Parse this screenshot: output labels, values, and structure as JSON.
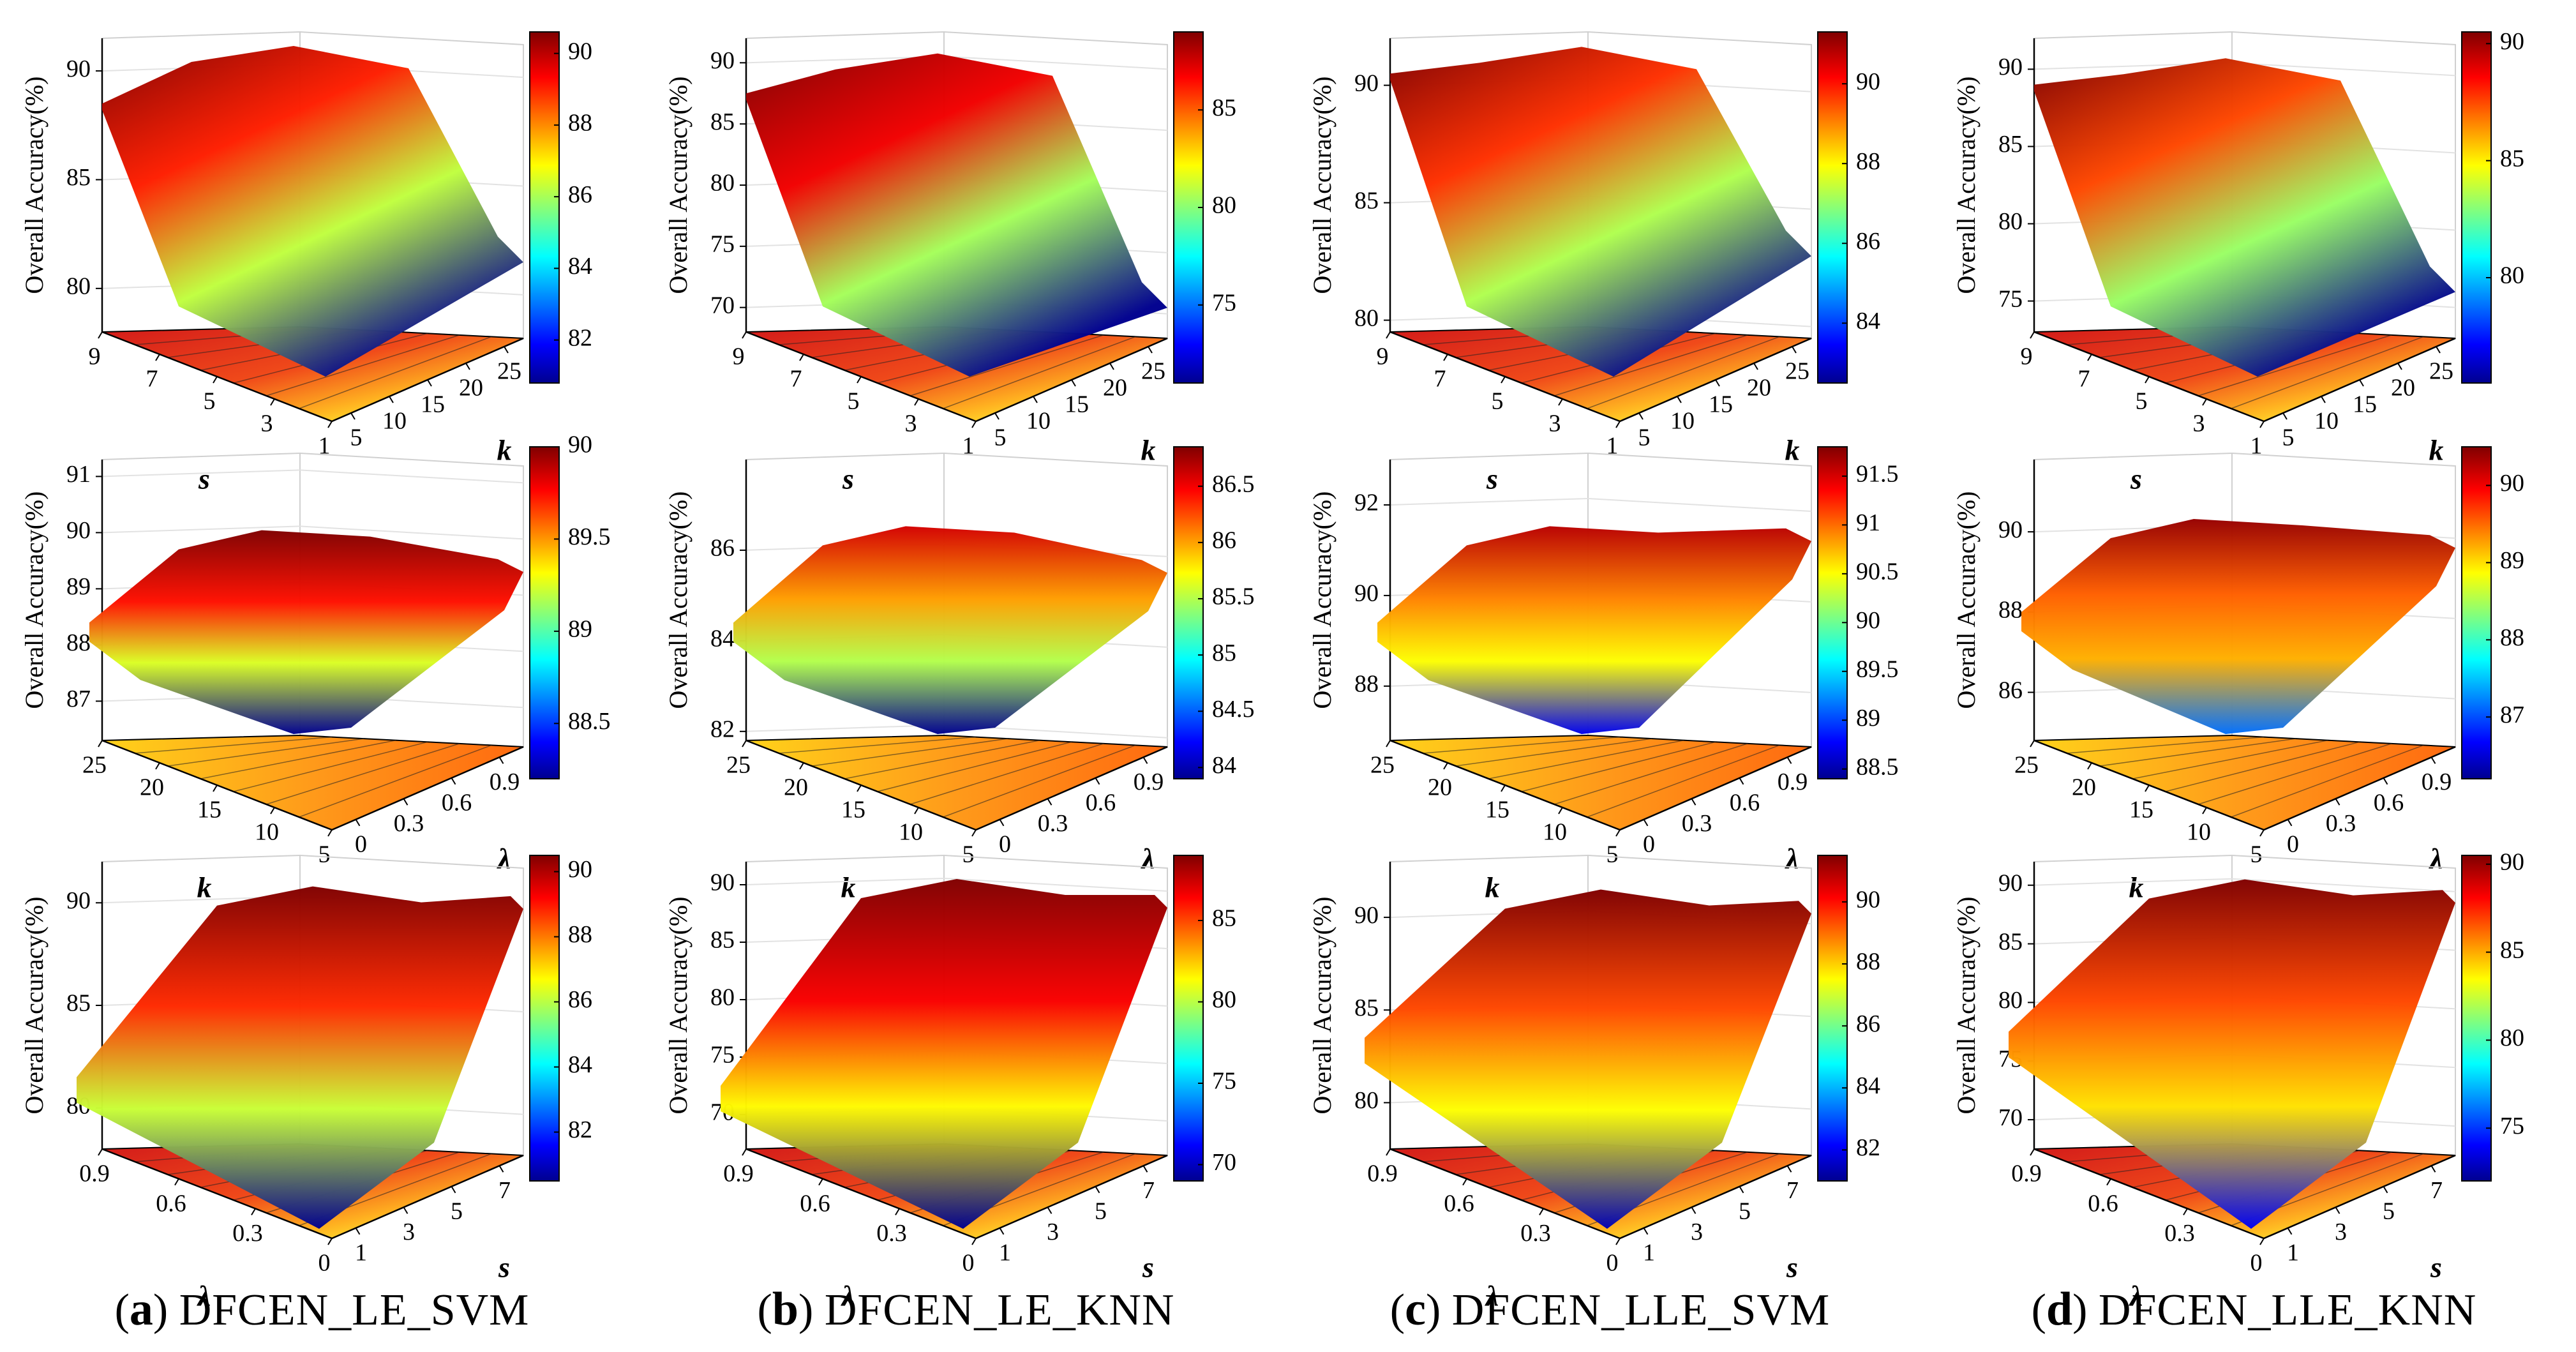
{
  "figure": {
    "panels": [
      {
        "letter": "a",
        "name": "DFCEN_LE_SVM"
      },
      {
        "letter": "b",
        "name": "DFCEN_LE_KNN"
      },
      {
        "letter": "c",
        "name": "DFCEN_LLE_SVM"
      },
      {
        "letter": "d",
        "name": "DFCEN_LLE_KNN"
      }
    ]
  },
  "chart_data": [
    {
      "type": "surface",
      "panel": "a",
      "row": 1,
      "zlabel": "Overall Accuracy(%)",
      "xlabel": "s",
      "ylabel": "k",
      "xticks": [
        "9",
        "7",
        "5",
        "3",
        "1"
      ],
      "yticks": [
        "5",
        "10",
        "15",
        "20",
        "25"
      ],
      "zticks": [
        "80",
        "85",
        "90"
      ],
      "zlim": [
        78,
        91.5
      ],
      "colorbar": {
        "ticks": [
          "82",
          "84",
          "86",
          "88",
          "90"
        ],
        "range": [
          80.8,
          90.6
        ]
      },
      "surface_start": 88.5,
      "surface_peak": 91.0,
      "surface_end": 81.5,
      "colormap": "jet"
    },
    {
      "type": "surface",
      "panel": "b",
      "row": 1,
      "zlabel": "Overall Accuracy(%)",
      "xlabel": "s",
      "ylabel": "k",
      "xticks": [
        "9",
        "7",
        "5",
        "3",
        "1"
      ],
      "yticks": [
        "5",
        "10",
        "15",
        "20",
        "25"
      ],
      "zticks": [
        "70",
        "75",
        "80",
        "85",
        "90"
      ],
      "zlim": [
        68,
        92
      ],
      "colorbar": {
        "ticks": [
          "75",
          "80",
          "85"
        ],
        "range": [
          71,
          89
        ]
      },
      "surface_start": 87.5,
      "surface_peak": 90.5,
      "surface_end": 70.5,
      "colormap": "jet"
    },
    {
      "type": "surface",
      "panel": "c",
      "row": 1,
      "zlabel": "Overall Accuracy(%)",
      "xlabel": "s",
      "ylabel": "k",
      "xticks": [
        "9",
        "7",
        "5",
        "3",
        "1"
      ],
      "yticks": [
        "5",
        "10",
        "15",
        "20",
        "25"
      ],
      "zticks": [
        "80",
        "85",
        "90"
      ],
      "zlim": [
        79.5,
        92
      ],
      "colorbar": {
        "ticks": [
          "84",
          "86",
          "88",
          "90"
        ],
        "range": [
          82.5,
          91.3
        ]
      },
      "surface_start": 90.5,
      "surface_peak": 91.5,
      "surface_end": 83.0,
      "colormap": "jet"
    },
    {
      "type": "surface",
      "panel": "d",
      "row": 1,
      "zlabel": "Overall Accuracy(%)",
      "xlabel": "s",
      "ylabel": "k",
      "xticks": [
        "9",
        "7",
        "5",
        "3",
        "1"
      ],
      "yticks": [
        "5",
        "10",
        "15",
        "20",
        "25"
      ],
      "zticks": [
        "75",
        "80",
        "85",
        "90"
      ],
      "zlim": [
        73,
        92
      ],
      "colorbar": {
        "ticks": [
          "80",
          "85",
          "90"
        ],
        "range": [
          75.5,
          90.5
        ]
      },
      "surface_start": 89.0,
      "surface_peak": 90.5,
      "surface_end": 76.0,
      "colormap": "jet"
    },
    {
      "type": "surface",
      "panel": "a",
      "row": 2,
      "zlabel": "Overall Accuracy(%)",
      "xlabel": "k",
      "ylabel": "λ",
      "xticks": [
        "25",
        "20",
        "15",
        "10",
        "5"
      ],
      "yticks": [
        "0",
        "0.3",
        "0.6",
        "0.9"
      ],
      "zticks": [
        "87",
        "88",
        "89",
        "90",
        "91"
      ],
      "zlim": [
        86.3,
        91.3
      ],
      "colorbar": {
        "ticks": [
          "88.5",
          "89",
          "89.5",
          "90"
        ],
        "range": [
          88.2,
          90.0
        ]
      },
      "surface_start": 88.4,
      "surface_peak": 90.1,
      "surface_end": 89.3,
      "colormap": "jet"
    },
    {
      "type": "surface",
      "panel": "b",
      "row": 2,
      "zlabel": "Overall Accuracy(%)",
      "xlabel": "k",
      "ylabel": "λ",
      "xticks": [
        "25",
        "20",
        "15",
        "10",
        "5"
      ],
      "yticks": [
        "0",
        "0.3",
        "0.6",
        "0.9"
      ],
      "zticks": [
        "82",
        "84",
        "86"
      ],
      "zlim": [
        81.8,
        88
      ],
      "colorbar": {
        "ticks": [
          "84",
          "84.5",
          "85",
          "85.5",
          "86",
          "86.5"
        ],
        "range": [
          83.9,
          86.85
        ]
      },
      "surface_start": 84.4,
      "surface_peak": 86.6,
      "surface_end": 85.5,
      "colormap": "jet"
    },
    {
      "type": "surface",
      "panel": "c",
      "row": 2,
      "zlabel": "Overall Accuracy(%)",
      "xlabel": "k",
      "ylabel": "λ",
      "xticks": [
        "25",
        "20",
        "15",
        "10",
        "5"
      ],
      "yticks": [
        "0",
        "0.3",
        "0.6",
        "0.9"
      ],
      "zticks": [
        "88",
        "90",
        "92"
      ],
      "zlim": [
        86.8,
        93
      ],
      "colorbar": {
        "ticks": [
          "88.5",
          "89",
          "89.5",
          "90",
          "90.5",
          "91",
          "91.5"
        ],
        "range": [
          88.4,
          91.8
        ]
      },
      "surface_start": 89.4,
      "surface_peak": 91.6,
      "surface_end": 91.2,
      "colormap": "jet"
    },
    {
      "type": "surface",
      "panel": "d",
      "row": 2,
      "zlabel": "Overall Accuracy(%)",
      "xlabel": "k",
      "ylabel": "λ",
      "xticks": [
        "25",
        "20",
        "15",
        "10",
        "5"
      ],
      "yticks": [
        "0",
        "0.3",
        "0.6",
        "0.9"
      ],
      "zticks": [
        "86",
        "88",
        "90"
      ],
      "zlim": [
        84.8,
        91.8
      ],
      "colorbar": {
        "ticks": [
          "87",
          "88",
          "89",
          "90"
        ],
        "range": [
          86.2,
          90.5
        ]
      },
      "surface_start": 88.0,
      "surface_peak": 90.4,
      "surface_end": 89.6,
      "colormap": "jet"
    },
    {
      "type": "surface",
      "panel": "a",
      "row": 3,
      "zlabel": "Overall Accuracy(%)",
      "xlabel": "λ",
      "ylabel": "s",
      "xticks": [
        "0.9",
        "0.6",
        "0.3",
        "0"
      ],
      "yticks": [
        "1",
        "3",
        "5",
        "7"
      ],
      "zticks": [
        "80",
        "85",
        "90"
      ],
      "zlim": [
        78,
        92
      ],
      "colorbar": {
        "ticks": [
          "82",
          "84",
          "86",
          "88",
          "90"
        ],
        "range": [
          80.5,
          90.5
        ]
      },
      "surface_start": 81.5,
      "surface_peak": 90.8,
      "surface_end": 89.7,
      "colormap": "jet"
    },
    {
      "type": "surface",
      "panel": "b",
      "row": 3,
      "zlabel": "Overall Accuracy(%)",
      "xlabel": "λ",
      "ylabel": "s",
      "xticks": [
        "0.9",
        "0.6",
        "0.3",
        "0"
      ],
      "yticks": [
        "1",
        "3",
        "5",
        "7"
      ],
      "zticks": [
        "70",
        "75",
        "80",
        "85",
        "90"
      ],
      "zlim": [
        67,
        92
      ],
      "colorbar": {
        "ticks": [
          "70",
          "75",
          "80",
          "85"
        ],
        "range": [
          69,
          89
        ]
      },
      "surface_start": 72.5,
      "surface_peak": 90.5,
      "surface_end": 88.0,
      "colormap": "jet"
    },
    {
      "type": "surface",
      "panel": "c",
      "row": 3,
      "zlabel": "Overall Accuracy(%)",
      "xlabel": "λ",
      "ylabel": "s",
      "xticks": [
        "0.9",
        "0.6",
        "0.3",
        "0"
      ],
      "yticks": [
        "1",
        "3",
        "5",
        "7"
      ],
      "zticks": [
        "80",
        "85",
        "90"
      ],
      "zlim": [
        77.5,
        93
      ],
      "colorbar": {
        "ticks": [
          "82",
          "84",
          "86",
          "88",
          "90"
        ],
        "range": [
          81,
          91.5
        ]
      },
      "surface_start": 83.5,
      "surface_peak": 91.5,
      "surface_end": 90.2,
      "colormap": "jet"
    },
    {
      "type": "surface",
      "panel": "d",
      "row": 3,
      "zlabel": "Overall Accuracy(%)",
      "xlabel": "λ",
      "ylabel": "s",
      "xticks": [
        "0.9",
        "0.6",
        "0.3",
        "0"
      ],
      "yticks": [
        "1",
        "3",
        "5",
        "7"
      ],
      "zticks": [
        "70",
        "75",
        "80",
        "85",
        "90"
      ],
      "zlim": [
        67.5,
        92
      ],
      "colorbar": {
        "ticks": [
          "75",
          "80",
          "85",
          "90"
        ],
        "range": [
          72,
          90.5
        ]
      },
      "surface_start": 77.5,
      "surface_peak": 90.5,
      "surface_end": 88.5,
      "colormap": "jet"
    }
  ]
}
